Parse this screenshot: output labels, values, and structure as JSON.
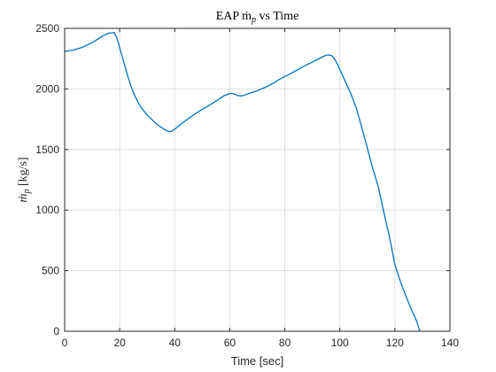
{
  "chart_data": {
    "type": "line",
    "title": "EAP ṁ",
    "title_sub": "p",
    "title_suffix": " vs Time",
    "xlabel": "Time [sec]",
    "ylabel": "ṁ",
    "ylabel_sub": "p",
    "ylabel_suffix": " [kg/s]",
    "xlim": [
      0,
      140
    ],
    "ylim": [
      0,
      2500
    ],
    "xticks": [
      0,
      20,
      40,
      60,
      80,
      100,
      120,
      140
    ],
    "yticks": [
      0,
      500,
      1000,
      1500,
      2000,
      2500
    ],
    "grid": true,
    "series_color": "#0072bd",
    "series": [
      {
        "x": [
          0,
          3,
          6,
          9,
          12,
          14,
          16,
          18,
          19,
          20,
          21,
          22,
          23,
          24,
          25,
          26,
          27,
          28,
          30,
          32,
          34,
          36,
          37,
          38,
          39,
          40,
          42,
          44,
          46,
          48,
          50,
          52,
          54,
          56,
          58,
          60,
          61,
          62,
          63,
          64,
          65,
          66,
          68,
          70,
          72,
          74,
          76,
          78,
          80,
          82,
          84,
          86,
          88,
          90,
          92,
          94,
          95,
          96,
          97,
          98,
          99,
          100,
          101,
          102,
          103,
          104,
          106,
          108,
          110,
          112,
          114,
          116,
          118,
          120,
          122,
          124,
          126,
          128,
          129
        ],
        "y": [
          2310,
          2320,
          2340,
          2370,
          2410,
          2440,
          2460,
          2465,
          2420,
          2340,
          2260,
          2180,
          2100,
          2030,
          1970,
          1920,
          1875,
          1840,
          1785,
          1740,
          1700,
          1670,
          1655,
          1648,
          1652,
          1668,
          1705,
          1740,
          1772,
          1803,
          1832,
          1858,
          1885,
          1915,
          1945,
          1962,
          1962,
          1955,
          1945,
          1942,
          1945,
          1955,
          1970,
          1985,
          2005,
          2025,
          2050,
          2078,
          2102,
          2125,
          2150,
          2175,
          2200,
          2222,
          2245,
          2268,
          2278,
          2280,
          2275,
          2250,
          2210,
          2160,
          2110,
          2060,
          2010,
          1960,
          1840,
          1680,
          1510,
          1340,
          1190,
          980,
          780,
          550,
          410,
          290,
          180,
          80,
          0
        ]
      }
    ]
  }
}
